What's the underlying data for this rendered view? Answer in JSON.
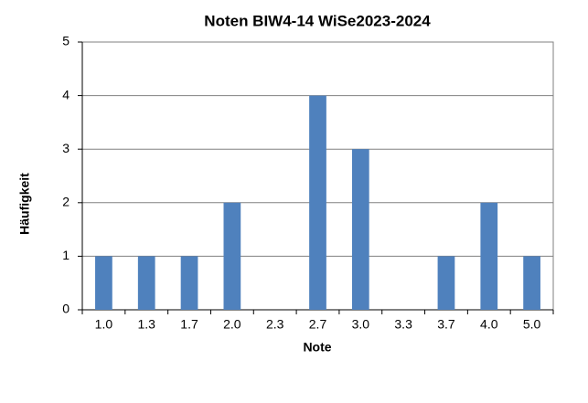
{
  "chart_data": {
    "type": "bar",
    "title": "Noten BIW4-14 WiSe2023-2024",
    "x_label": "Note",
    "y_label": "Häufigkeit",
    "categories": [
      "1.0",
      "1.3",
      "1.7",
      "2.0",
      "2.3",
      "2.7",
      "3.0",
      "3.3",
      "3.7",
      "4.0",
      "5.0"
    ],
    "values": [
      1,
      1,
      1,
      2,
      0,
      4,
      3,
      0,
      1,
      2,
      1
    ],
    "color": "#4f81bd",
    "ylim": [
      0,
      5
    ],
    "yticks": [
      0,
      1,
      2,
      3,
      4,
      5
    ],
    "grid": true
  }
}
